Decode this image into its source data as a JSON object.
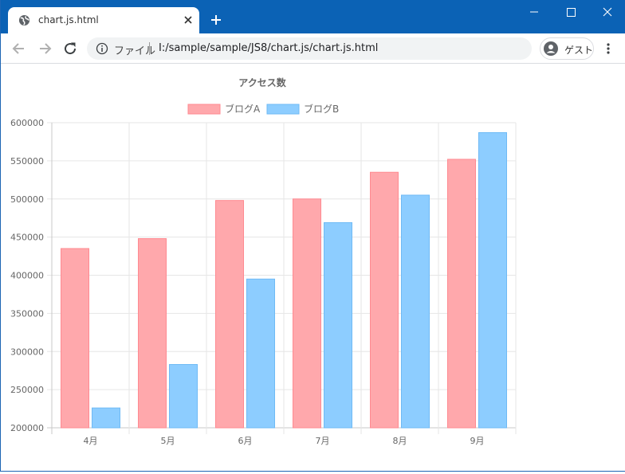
{
  "window": {
    "minimize_icon": "minimize-icon",
    "maximize_icon": "maximize-icon",
    "close_icon": "close-icon",
    "titlebar_color": "#0b62b5"
  },
  "tab": {
    "title": "chart.js.html",
    "icon": "globe-icon"
  },
  "toolbar": {
    "back_icon": "back-arrow-icon",
    "forward_icon": "forward-arrow-icon",
    "reload_icon": "reload-icon",
    "address_label": "ファイル",
    "url": "I:/sample/sample/JS8/chart.js/chart.js.html",
    "profile_label": "ゲスト",
    "menu_icon": "kebab-menu-icon"
  },
  "chart_data": {
    "type": "bar",
    "title": "アクセス数",
    "categories": [
      "4月",
      "5月",
      "6月",
      "7月",
      "8月",
      "9月"
    ],
    "series": [
      {
        "name": "ブログA",
        "values": [
          435000,
          448000,
          498000,
          500000,
          535000,
          552000
        ],
        "color": "#ffa8ac",
        "border": "#ff8a91"
      },
      {
        "name": "ブログB",
        "values": [
          226000,
          283000,
          395000,
          469000,
          505000,
          587000
        ],
        "color": "#8dcdff",
        "border": "#6fbaf5"
      }
    ],
    "ylim": [
      200000,
      600000
    ],
    "yticks": [
      "600000",
      "550000",
      "500000",
      "450000",
      "400000",
      "350000",
      "300000",
      "250000",
      "200000"
    ],
    "legend": "top",
    "grid": true
  }
}
